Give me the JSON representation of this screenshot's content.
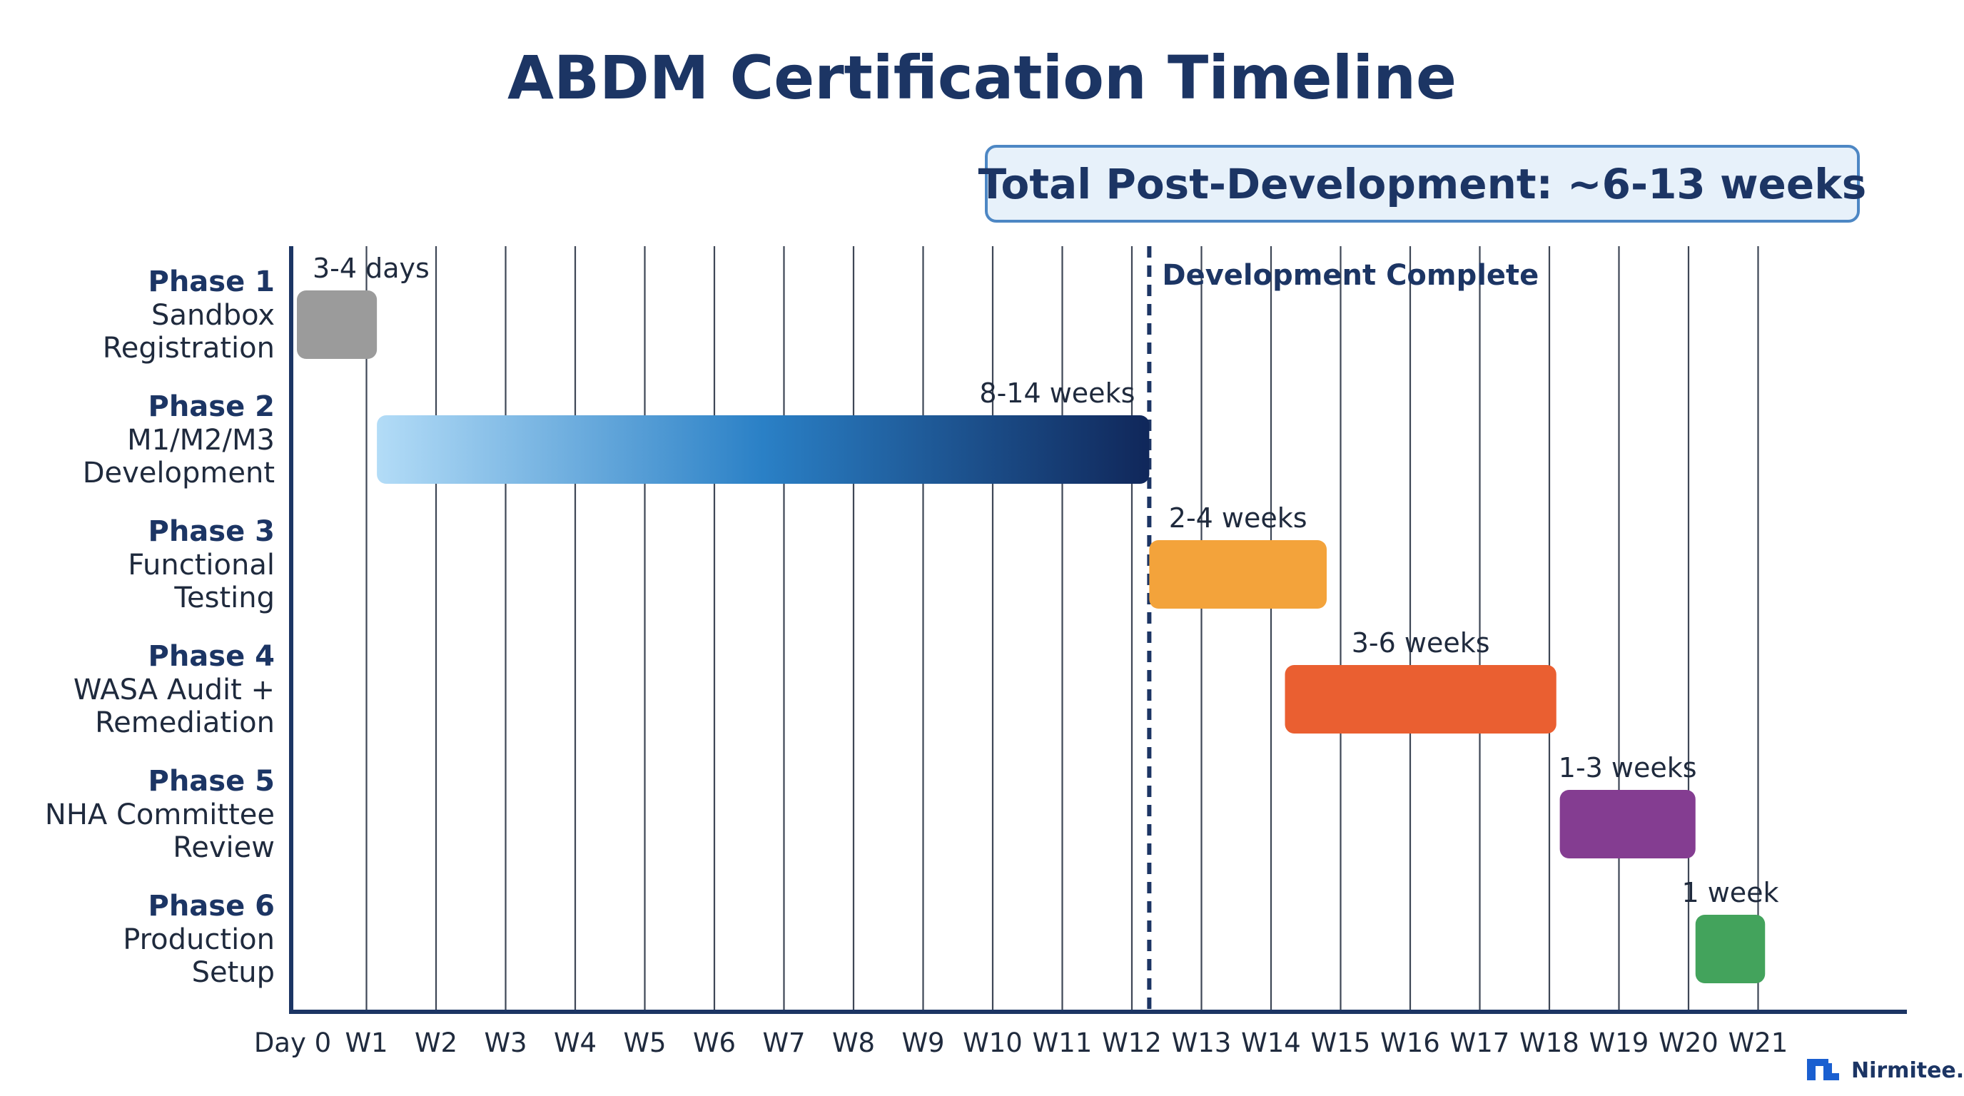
{
  "chart_data": {
    "type": "gantt",
    "title": "ABDM Certification Timeline",
    "badge": "Total Post-Development: ~6-13 weeks",
    "x_ticks": [
      "Day 0",
      "W1",
      "W2",
      "W3",
      "W4",
      "W5",
      "W6",
      "W7",
      "W8",
      "W9",
      "W10",
      "W11",
      "W12",
      "W13",
      "W14",
      "W15",
      "W16",
      "W17",
      "W18",
      "W19",
      "W20",
      "W21"
    ],
    "x_tick_values": [
      0,
      1,
      2,
      3,
      4,
      5,
      6,
      7,
      8,
      9,
      10,
      11,
      12,
      13,
      14,
      15,
      16,
      17,
      18,
      19,
      20,
      21
    ],
    "x_unit": "weeks",
    "x_range": [
      0,
      21
    ],
    "grid": true,
    "marker": {
      "label": "Development Complete",
      "x": 12.25,
      "style": "dashed"
    },
    "phases": [
      {
        "phase": "Phase 1",
        "lines": [
          "Sandbox",
          "Registration"
        ],
        "start": 0,
        "end": 1.15,
        "duration_label": "3-4 days",
        "color": "#9b9b9b"
      },
      {
        "phase": "Phase 2",
        "lines": [
          "M1/M2/M3",
          "Development"
        ],
        "start": 1.15,
        "end": 12.25,
        "duration_label": "8-14 weeks",
        "color": "gradient",
        "gradient": [
          "#b3dcf7",
          "#2a80c6",
          "#10275a"
        ]
      },
      {
        "phase": "Phase 3",
        "lines": [
          "Functional",
          "Testing"
        ],
        "start": 12.25,
        "end": 14.8,
        "duration_label": "2-4 weeks",
        "color": "#f3a33b"
      },
      {
        "phase": "Phase 4",
        "lines": [
          "WASA Audit +",
          "Remediation"
        ],
        "start": 14.2,
        "end": 18.1,
        "duration_label": "3-6 weeks",
        "color": "#ea5f31"
      },
      {
        "phase": "Phase 5",
        "lines": [
          "NHA Committee",
          "Review"
        ],
        "start": 18.15,
        "end": 20.1,
        "duration_label": "1-3 weeks",
        "color": "#843d91"
      },
      {
        "phase": "Phase 6",
        "lines": [
          "Production",
          "Setup"
        ],
        "start": 20.1,
        "end": 21.1,
        "duration_label": "1 week",
        "color": "#43a35c"
      }
    ]
  },
  "brand": {
    "name": "Nirmitee.io",
    "icon": "nirmitee-logo-icon",
    "color": "#1a5fd0"
  }
}
